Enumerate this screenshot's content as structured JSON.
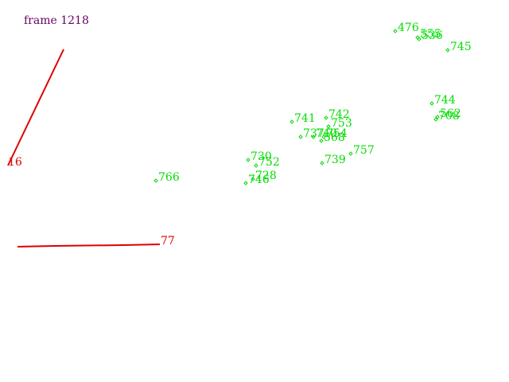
{
  "frame_label": "frame 1218",
  "colors": {
    "title": "#660066",
    "track": "#dd0000",
    "point": "#00dd00"
  },
  "tracks": [
    {
      "label": "16",
      "symbol": "red-line"
    },
    {
      "label": "77",
      "symbol": "red-line"
    }
  ],
  "points": [
    {
      "label": "476",
      "symbol": "diamond"
    },
    {
      "label": "555",
      "symbol": "diamond"
    },
    {
      "label": "536",
      "symbol": "diamond"
    },
    {
      "label": "745",
      "symbol": "diamond"
    },
    {
      "label": "744",
      "symbol": "diamond"
    },
    {
      "label": "562",
      "symbol": "diamond"
    },
    {
      "label": "708",
      "symbol": "diamond"
    },
    {
      "label": "741",
      "symbol": "diamond"
    },
    {
      "label": "742",
      "symbol": "diamond"
    },
    {
      "label": "753",
      "symbol": "diamond"
    },
    {
      "label": "737",
      "symbol": "diamond"
    },
    {
      "label": "740",
      "symbol": "diamond"
    },
    {
      "label": "754",
      "symbol": "diamond"
    },
    {
      "label": "568",
      "symbol": "diamond"
    },
    {
      "label": "757",
      "symbol": "diamond"
    },
    {
      "label": "739",
      "symbol": "diamond"
    },
    {
      "label": "730",
      "symbol": "diamond"
    },
    {
      "label": "752",
      "symbol": "diamond"
    },
    {
      "label": "728",
      "symbol": "diamond"
    },
    {
      "label": "746",
      "symbol": "diamond"
    },
    {
      "label": "766",
      "symbol": "diamond"
    }
  ]
}
